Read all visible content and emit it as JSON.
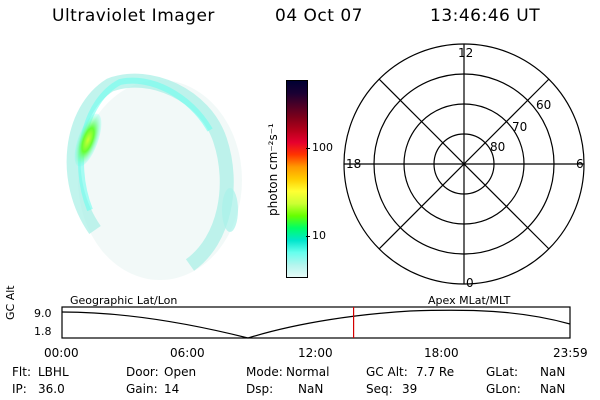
{
  "header": {
    "instrument": "Ultraviolet Imager",
    "date": "04 Oct 07",
    "time": "13:46:46 UT"
  },
  "colorbar": {
    "unit": "photon cm⁻²s⁻¹",
    "ticks": [
      "100",
      "10"
    ],
    "colors": [
      "#000033",
      "#1a0033",
      "#4d0026",
      "#80001a",
      "#b3001a",
      "#e6002e",
      "#ff3300",
      "#ff9900",
      "#ffcc00",
      "#ffff33",
      "#ccff33",
      "#66ff00",
      "#00ff66",
      "#00e6cc",
      "#66ffee",
      "#b3f5ee",
      "#e6faf7"
    ]
  },
  "polar_grid": {
    "mlt_labels": {
      "top": "12",
      "left": "18",
      "right": "6",
      "bottom": "0"
    },
    "lat_labels": [
      "80",
      "70",
      "60"
    ]
  },
  "timeline": {
    "left_label": "Geographic Lat/Lon",
    "right_label": "Apex MLat/MLT",
    "axis_label": "GC Alt",
    "y_ticks": [
      "9.0",
      "1.8"
    ],
    "x_ticks": [
      "00:00",
      "06:00",
      "12:00",
      "18:00",
      "23:59"
    ],
    "current_time_fraction": 0.574
  },
  "status": {
    "flt_label": "Flt:",
    "flt_value": "LBHL",
    "ip_label": "IP:",
    "ip_value": "36.0",
    "door_label": "Door:",
    "door_value": "Open",
    "gain_label": "Gain:",
    "gain_value": "14",
    "mode_label": "Mode:",
    "mode_value": "Normal",
    "dsp_label": "Dsp:",
    "dsp_value": "NaN",
    "gcalt_label": "GC Alt:",
    "gcalt_value": "7.7 Re",
    "seq_label": "Seq:",
    "seq_value": "39",
    "glat_label": "GLat:",
    "glat_value": "NaN",
    "glon_label": "GLon:",
    "glon_value": "NaN"
  }
}
